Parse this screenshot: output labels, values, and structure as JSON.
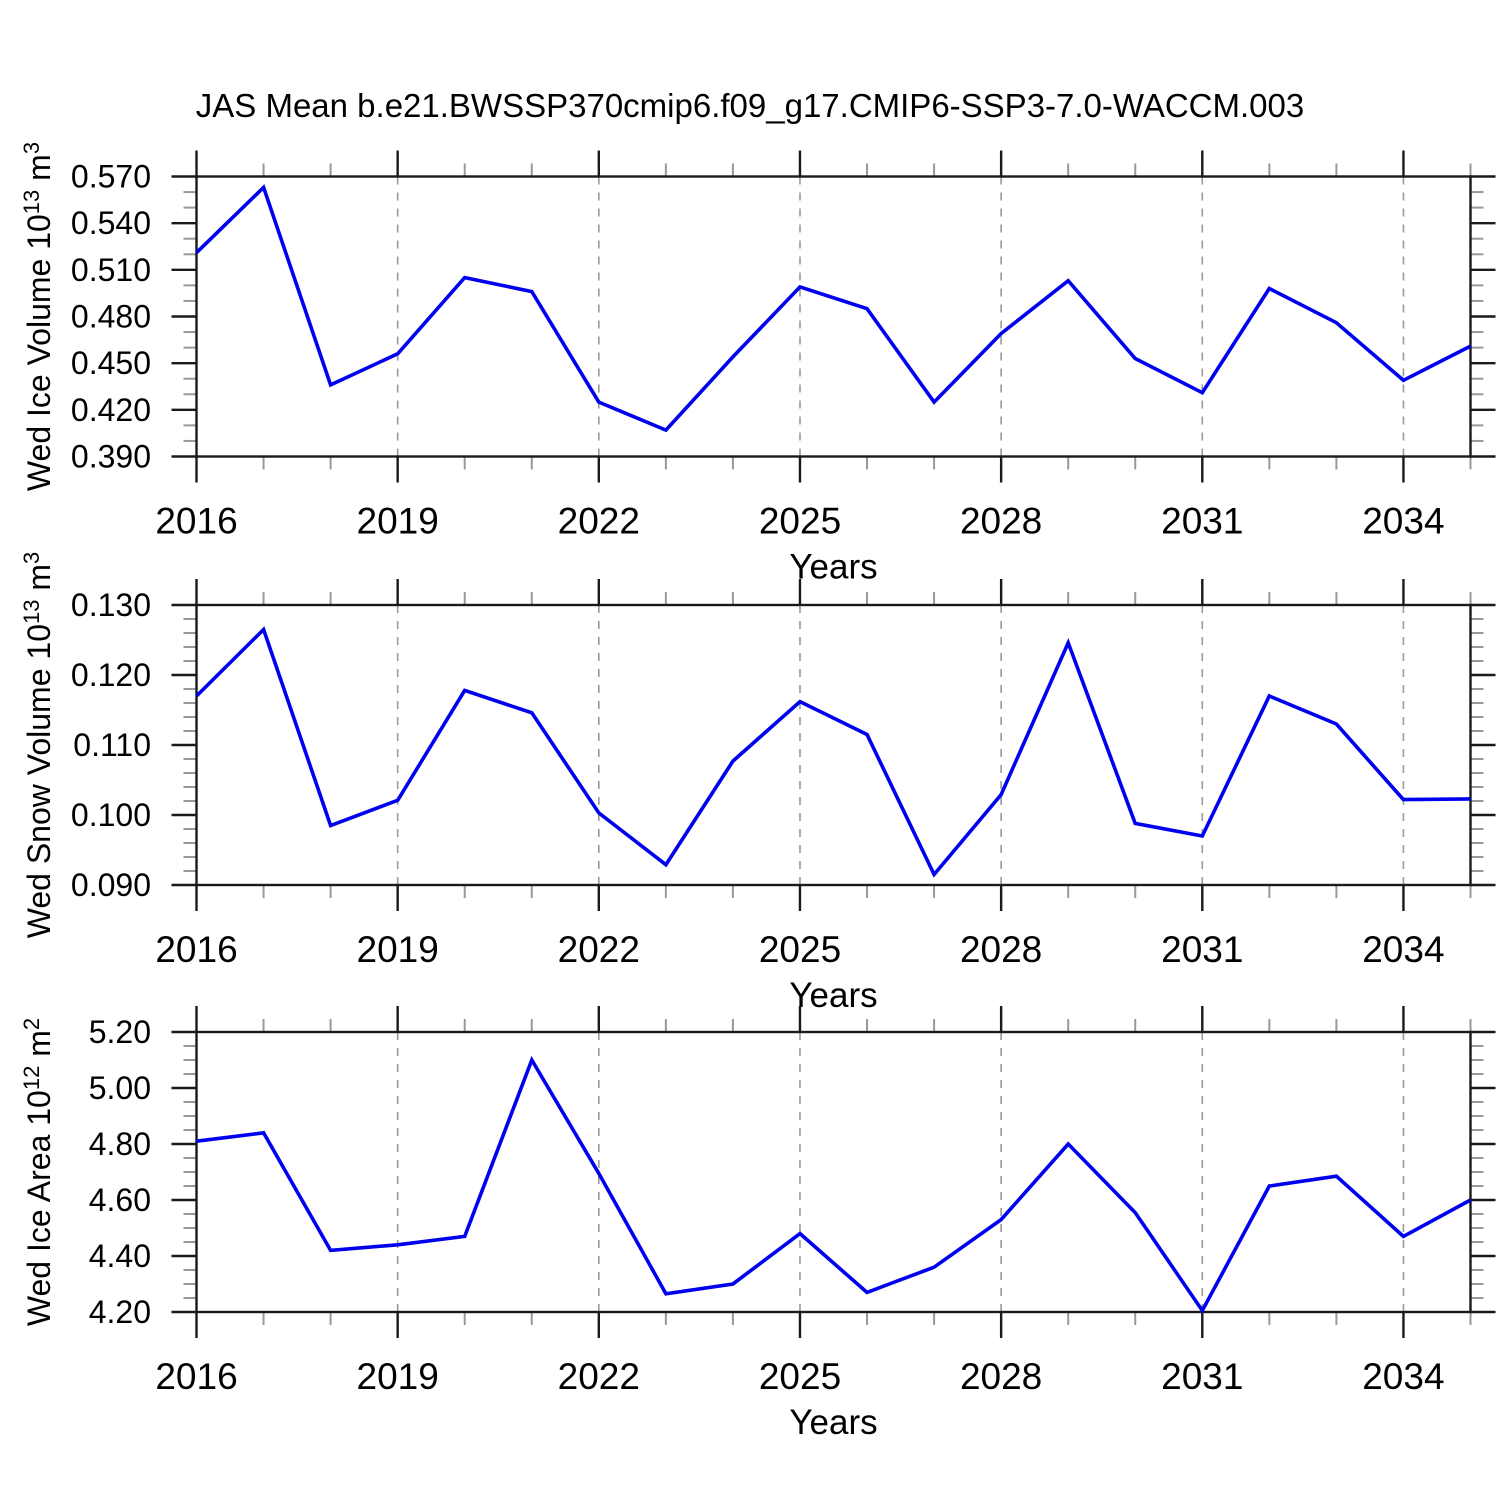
{
  "title": "JAS Mean b.e21.BWSSP370cmip6.f09_g17.CMIP6-SSP3-7.0-WACCM.003",
  "colors": {
    "line": "#0000f0",
    "axis": "#1a1a1a",
    "minor_tick": "#999999",
    "grid": "#9a9a9a",
    "text": "#000000",
    "background": "#ffffff"
  },
  "x_axis": {
    "label": "Years",
    "years": [
      2016,
      2017,
      2018,
      2019,
      2020,
      2021,
      2022,
      2023,
      2024,
      2025,
      2026,
      2027,
      2028,
      2029,
      2030,
      2031,
      2032,
      2033,
      2034,
      2035
    ],
    "major_tick_years": [
      2016,
      2019,
      2022,
      2025,
      2028,
      2031,
      2034
    ],
    "major_tick_labels": [
      "2016",
      "2019",
      "2022",
      "2025",
      "2028",
      "2031",
      "2034"
    ]
  },
  "chart_data": [
    {
      "type": "line",
      "name": "wed-ice-volume",
      "ylabel": "Wed Ice Volume 10^13 m^3",
      "ylabel_parts": [
        {
          "text": "Wed Ice Volume 10"
        },
        {
          "text": "13",
          "sup": true
        },
        {
          "text": " m"
        },
        {
          "text": "3",
          "sup": true
        }
      ],
      "xlabel": "Years",
      "ylim": [
        0.39,
        0.57
      ],
      "y_major_step": 0.03,
      "y_minor_step": 0.01,
      "y_tick_labels": [
        "0.390",
        "0.420",
        "0.450",
        "0.480",
        "0.510",
        "0.540",
        "0.570"
      ],
      "x": [
        2016,
        2017,
        2018,
        2019,
        2020,
        2021,
        2022,
        2023,
        2024,
        2025,
        2026,
        2027,
        2028,
        2029,
        2030,
        2031,
        2032,
        2033,
        2034,
        2035
      ],
      "values": [
        0.521,
        0.563,
        0.436,
        0.456,
        0.505,
        0.496,
        0.425,
        0.407,
        0.454,
        0.499,
        0.485,
        0.425,
        0.469,
        0.503,
        0.453,
        0.431,
        0.498,
        0.476,
        0.439,
        0.461
      ],
      "grid": "dashed-vertical-at-major-years",
      "legend": "none"
    },
    {
      "type": "line",
      "name": "wed-snow-volume",
      "ylabel": "Wed Snow Volume 10^13 m^3",
      "ylabel_parts": [
        {
          "text": "Wed Snow Volume 10"
        },
        {
          "text": "13",
          "sup": true
        },
        {
          "text": " m"
        },
        {
          "text": "3",
          "sup": true
        }
      ],
      "xlabel": "Years",
      "ylim": [
        0.09,
        0.13
      ],
      "y_major_step": 0.01,
      "y_minor_step": 0.002,
      "y_tick_labels": [
        "0.090",
        "0.100",
        "0.110",
        "0.120",
        "0.130"
      ],
      "x": [
        2016,
        2017,
        2018,
        2019,
        2020,
        2021,
        2022,
        2023,
        2024,
        2025,
        2026,
        2027,
        2028,
        2029,
        2030,
        2031,
        2032,
        2033,
        2034,
        2035
      ],
      "values": [
        0.117,
        0.1265,
        0.0985,
        0.1021,
        0.1178,
        0.1146,
        0.1003,
        0.0929,
        0.1077,
        0.1162,
        0.1115,
        0.0915,
        0.1029,
        0.1246,
        0.0988,
        0.097,
        0.117,
        0.113,
        0.1022,
        0.1023
      ],
      "grid": "dashed-vertical-at-major-years",
      "legend": "none"
    },
    {
      "type": "line",
      "name": "wed-ice-area",
      "ylabel": "Wed Ice Area 10^12 m^2",
      "ylabel_parts": [
        {
          "text": "Wed Ice Area 10"
        },
        {
          "text": "12",
          "sup": true
        },
        {
          "text": " m"
        },
        {
          "text": "2",
          "sup": true
        }
      ],
      "xlabel": "Years",
      "ylim": [
        4.2,
        5.2
      ],
      "y_major_step": 0.2,
      "y_minor_step": 0.05,
      "y_tick_labels": [
        "4.20",
        "4.40",
        "4.60",
        "4.80",
        "5.00",
        "5.20"
      ],
      "x": [
        2016,
        2017,
        2018,
        2019,
        2020,
        2021,
        2022,
        2023,
        2024,
        2025,
        2026,
        2027,
        2028,
        2029,
        2030,
        2031,
        2032,
        2033,
        2034,
        2035
      ],
      "values": [
        4.81,
        4.84,
        4.42,
        4.44,
        4.47,
        5.1,
        4.695,
        4.265,
        4.3,
        4.48,
        4.27,
        4.36,
        4.53,
        4.8,
        4.555,
        4.205,
        4.65,
        4.685,
        4.47,
        4.6
      ],
      "grid": "dashed-vertical-at-major-years",
      "legend": "none"
    }
  ]
}
